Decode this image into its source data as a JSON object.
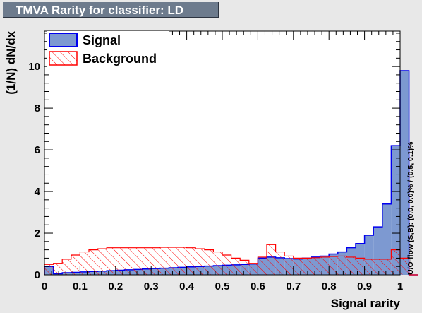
{
  "title": "TMVA Rarity for classifier: LD",
  "overflow_note": "U/O-flow (S,B): (0.0, 0.0)% / (0.5, 0.1)%",
  "colors": {
    "signal_fill": "#7d99d1",
    "signal_line": "#0000ee",
    "background_line": "#ff0000",
    "frame_bg": "#e8e8e8",
    "plot_bg": "#ffffff"
  },
  "chart_data": {
    "type": "histogram",
    "title": "TMVA Rarity for classifier: LD",
    "xlabel": "Signal rarity",
    "ylabel": "(1/N) dN/dx",
    "xlim": [
      0,
      1
    ],
    "ylim": [
      0,
      11.7
    ],
    "grid": false,
    "legend_position": "top-left",
    "x_ticks": [
      0,
      0.1,
      0.2,
      0.3,
      0.4,
      0.5,
      0.6,
      0.7,
      0.8,
      0.9,
      1
    ],
    "x_tick_labels": [
      "0",
      "0.1",
      "0.2",
      "0.3",
      "0.4",
      "0.5",
      "0.6",
      "0.7",
      "0.8",
      "0.9",
      "1"
    ],
    "y_ticks": [
      0,
      2,
      4,
      6,
      8,
      10
    ],
    "y_tick_labels": [
      "0",
      "2",
      "4",
      "6",
      "8",
      "10"
    ],
    "bin_edges_start": 0,
    "bin_width": 0.025,
    "series": [
      {
        "name": "Signal",
        "style": "filled",
        "values": [
          0.4,
          0.05,
          0.1,
          0.12,
          0.14,
          0.16,
          0.18,
          0.2,
          0.22,
          0.24,
          0.26,
          0.28,
          0.3,
          0.32,
          0.34,
          0.36,
          0.38,
          0.4,
          0.42,
          0.44,
          0.46,
          0.48,
          0.5,
          0.52,
          0.8,
          0.85,
          0.82,
          0.78,
          0.76,
          0.8,
          0.85,
          0.9,
          1.0,
          1.1,
          1.3,
          1.5,
          1.9,
          2.3,
          3.4,
          6.2,
          9.8,
          0
        ]
      },
      {
        "name": "Background",
        "style": "hatched",
        "values": [
          0.5,
          0.55,
          0.75,
          0.95,
          1.1,
          1.2,
          1.25,
          1.3,
          1.3,
          1.3,
          1.3,
          1.3,
          1.3,
          1.32,
          1.32,
          1.32,
          1.3,
          1.25,
          1.2,
          1.1,
          0.95,
          0.8,
          0.7,
          0.55,
          0.85,
          1.45,
          1.1,
          0.9,
          0.8,
          0.8,
          0.82,
          0.85,
          0.88,
          0.9,
          0.85,
          0.8,
          0.75,
          0.75,
          0.75,
          1.2,
          0.8,
          0
        ]
      }
    ]
  }
}
